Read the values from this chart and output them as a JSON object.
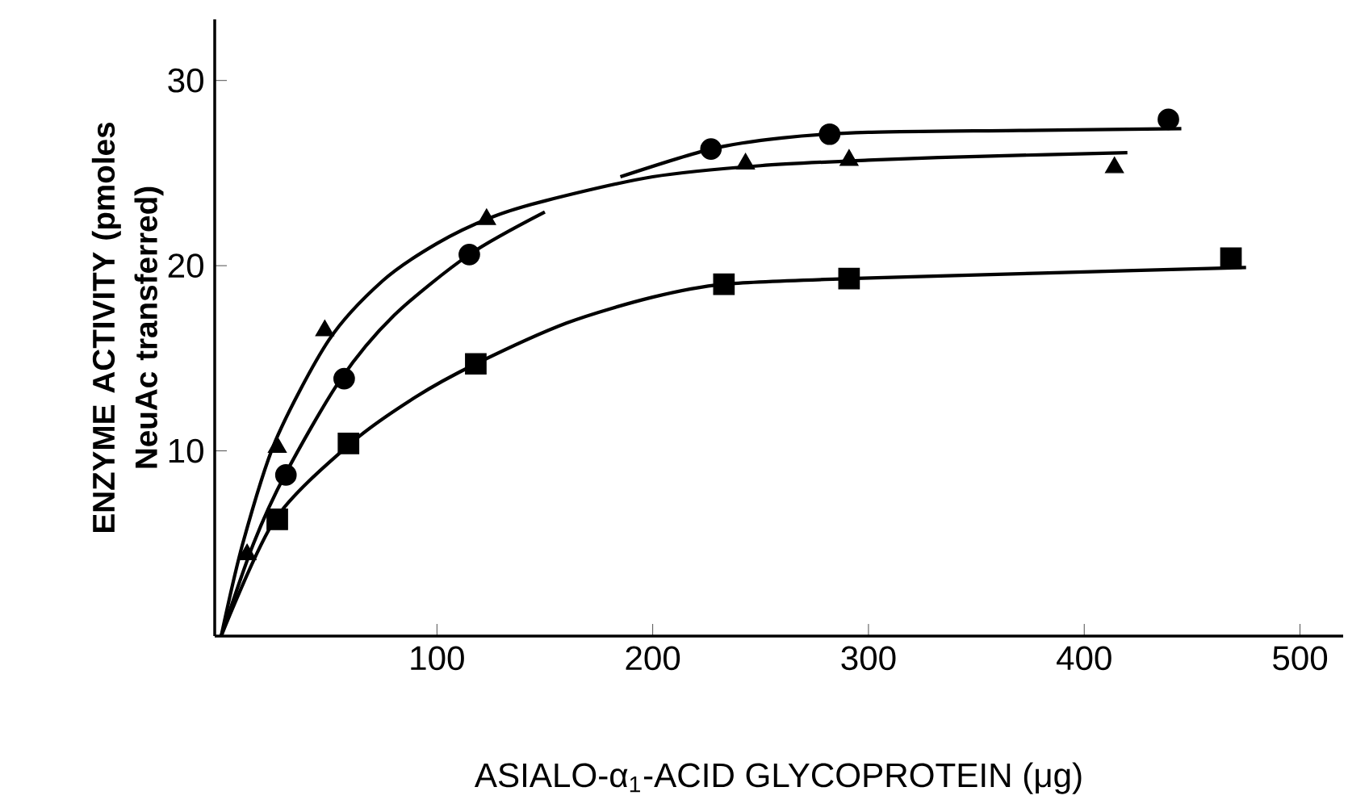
{
  "chart_data": {
    "type": "scatter",
    "xlabel": "ASIALO-α$_{1}$-ACID GLYCOPROTEIN  (μg)",
    "ylabel": "ENZYME ACTIVITY (pmoles NeuAc transferred)",
    "xlim": [
      -3,
      520
    ],
    "ylim": [
      0,
      33.3
    ],
    "xticks": [
      100,
      200,
      300,
      400,
      500
    ],
    "yticks": [
      10,
      20,
      30
    ],
    "grid": false,
    "series": [
      {
        "marker": "triangle",
        "color": "#000000",
        "x": [
          12,
          26,
          48,
          123,
          243,
          291,
          414
        ],
        "values": [
          4.4,
          10.2,
          16.5,
          22.5,
          25.5,
          25.7,
          25.3
        ]
      },
      {
        "marker": "circle",
        "color": "#000000",
        "x": [
          30,
          57,
          115,
          227,
          282,
          439
        ],
        "values": [
          8.7,
          13.9,
          20.6,
          26.3,
          27.1,
          27.9
        ]
      },
      {
        "marker": "square",
        "color": "#000000",
        "x": [
          26,
          59,
          118,
          233,
          291,
          468
        ],
        "values": [
          6.3,
          10.4,
          14.7,
          19.0,
          19.3,
          20.4
        ]
      },
      {
        "type": "line",
        "marker": "none",
        "color": "#000000",
        "x": [
          0,
          10,
          25,
          50,
          75,
          100,
          125,
          150,
          200,
          250,
          300,
          350,
          420
        ],
        "values": [
          0,
          5,
          10.5,
          16,
          19.2,
          21.2,
          22.6,
          23.5,
          24.8,
          25.4,
          25.7,
          25.9,
          26.1
        ]
      },
      {
        "type": "line",
        "marker": "none",
        "color": "#000000",
        "x": [
          0,
          15,
          30,
          55,
          80,
          115,
          150
        ],
        "values": [
          0,
          5,
          8.8,
          13.8,
          17.3,
          20.6,
          22.9
        ]
      },
      {
        "type": "line",
        "marker": "none",
        "color": "#000000",
        "x": [
          185,
          227,
          260,
          300,
          370,
          445
        ],
        "values": [
          24.8,
          26.3,
          26.9,
          27.2,
          27.3,
          27.4
        ]
      },
      {
        "type": "line",
        "marker": "none",
        "color": "#000000",
        "x": [
          0,
          25,
          60,
          90,
          118,
          160,
          200,
          233,
          291,
          380,
          475
        ],
        "values": [
          0,
          6.3,
          10.4,
          12.9,
          14.7,
          16.9,
          18.3,
          19.0,
          19.3,
          19.6,
          19.9
        ]
      }
    ]
  }
}
